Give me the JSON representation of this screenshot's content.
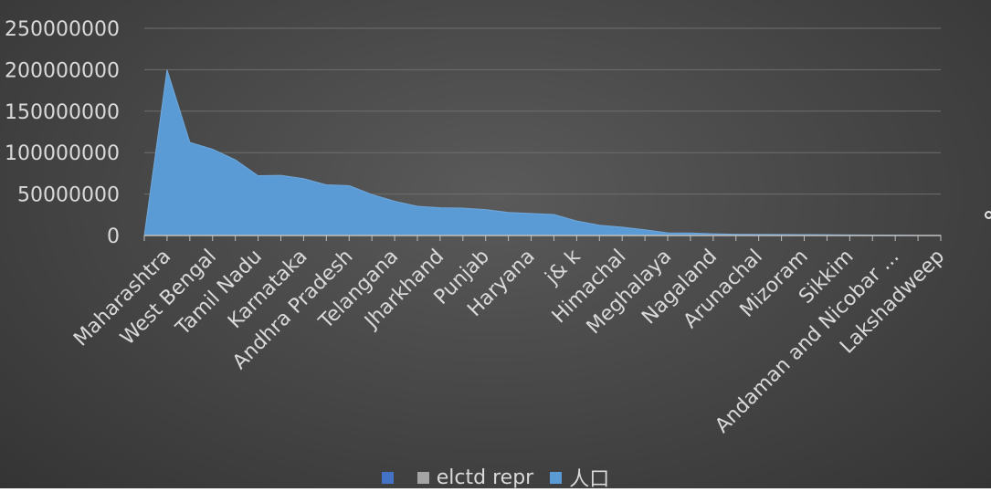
{
  "chart_data": {
    "type": "area",
    "title": "",
    "xlabel": "",
    "ylabel": "",
    "ylim": [
      0,
      250000000
    ],
    "yticks": [
      0,
      50000000,
      100000000,
      150000000,
      200000000,
      250000000
    ],
    "ytick_labels": [
      "0",
      "50000000",
      "100000000",
      "150000000",
      "200000000",
      "250000000"
    ],
    "grid": true,
    "legend_position": "bottom",
    "categories": [
      "",
      "Maharashtra",
      "",
      "West Bengal",
      "",
      "Tamil Nadu",
      "",
      "Karnataka",
      "",
      "Andhra Pradesh",
      "",
      "Telangana",
      "",
      "Jharkhand",
      "",
      "Punjab",
      "",
      "Haryana",
      "",
      "j& k",
      "",
      "Himachal",
      "",
      "Meghalaya",
      "",
      "Nagaland",
      "",
      "Arunachal",
      "",
      "Mizoram",
      "",
      "Sikkim",
      "",
      "Andaman and Nicobar ...",
      "",
      "Lakshadweep"
    ],
    "legend": [
      {
        "label": "",
        "color": "#4472c4"
      },
      {
        "label": "elctd repr",
        "color": "#a5a5a5"
      },
      {
        "label": "人口",
        "color": "#5b9bd5"
      }
    ],
    "series": [
      {
        "name": "人口",
        "color": "#5b9bd5",
        "values": [
          0,
          199800000,
          112400000,
          104100000,
          91300000,
          72100000,
          72600000,
          68600000,
          61100000,
          60100000,
          49500000,
          41300000,
          35200000,
          33400000,
          33000000,
          31200000,
          27800000,
          26600000,
          25400000,
          17500000,
          12400000,
          10100000,
          6900000,
          3200000,
          3000000,
          2000000,
          1500000,
          1400000,
          1300000,
          1100000,
          1000000,
          700000,
          600000,
          400000,
          200000,
          100000
        ]
      }
    ]
  }
}
